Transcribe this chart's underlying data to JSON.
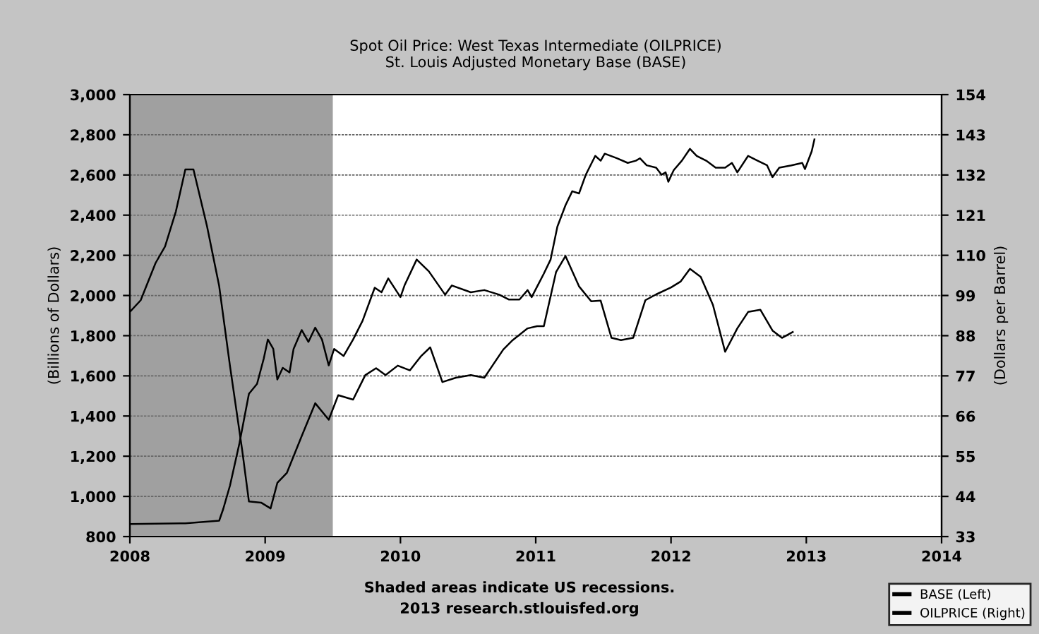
{
  "chart_data": {
    "type": "line",
    "title": "Spot Oil Price: West Texas Intermediate (OILPRICE)\nSt. Louis Adjusted Monetary Base (BASE)",
    "ylabel": "(Billions of Dollars)",
    "y2label": "(Dollars per Barrel)",
    "xlim": [
      2008,
      2014
    ],
    "xticks": [
      2008,
      2009,
      2010,
      2011,
      2012,
      2013,
      2014
    ],
    "ylim": [
      800,
      3000
    ],
    "yticks": [
      {
        "value": 800,
        "label": "800"
      },
      {
        "value": 1000,
        "label": "1,000"
      },
      {
        "value": 1200,
        "label": "1,200"
      },
      {
        "value": 1400,
        "label": "1,400"
      },
      {
        "value": 1600,
        "label": "1,600"
      },
      {
        "value": 1800,
        "label": "1,800"
      },
      {
        "value": 2000,
        "label": "2,000"
      },
      {
        "value": 2200,
        "label": "2,200"
      },
      {
        "value": 2400,
        "label": "2,400"
      },
      {
        "value": 2600,
        "label": "2,600"
      },
      {
        "value": 2800,
        "label": "2,800"
      },
      {
        "value": 3000,
        "label": "3,000"
      }
    ],
    "y2lim": [
      33,
      154
    ],
    "y2ticks": [
      33,
      44,
      55,
      66,
      77,
      88,
      99,
      110,
      121,
      132,
      143,
      154
    ],
    "grid": "y",
    "legend": "bottom right",
    "bands": [
      {
        "axis": "x",
        "from": 2008,
        "to": 2009.5,
        "color": "#a0a0a0"
      }
    ],
    "annotations": [
      "Shaded areas indicate US recessions.",
      "2013 research.stlouisfed.org"
    ],
    "series": [
      {
        "name": "BASE (Left)",
        "color": "#000000",
        "x": [
          2008.0,
          2008.41,
          2008.66,
          2008.69,
          2008.74,
          2008.81,
          2008.88,
          2008.94,
          2008.99,
          2009.02,
          2009.06,
          2009.09,
          2009.13,
          2009.18,
          2009.21,
          2009.27,
          2009.32,
          2009.37,
          2009.42,
          2009.47,
          2009.51,
          2009.58,
          2009.65,
          2009.72,
          2009.81,
          2009.86,
          2009.91,
          2010.0,
          2010.03,
          2010.12,
          2010.21,
          2010.33,
          2010.38,
          2010.52,
          2010.62,
          2010.73,
          2010.8,
          2010.88,
          2010.94,
          2010.97,
          2011.06,
          2011.11,
          2011.16,
          2011.22,
          2011.27,
          2011.32,
          2011.37,
          2011.44,
          2011.48,
          2011.51,
          2011.6,
          2011.68,
          2011.74,
          2011.77,
          2011.82,
          2011.89,
          2011.93,
          2011.96,
          2011.98,
          2012.02,
          2012.08,
          2012.14,
          2012.19,
          2012.26,
          2012.33,
          2012.4,
          2012.45,
          2012.49,
          2012.57,
          2012.64,
          2012.71,
          2012.75,
          2012.8,
          2012.89,
          2012.97,
          2012.99,
          2013.04,
          2013.06
        ],
        "values": [
          862,
          866,
          879,
          937,
          1054,
          1265,
          1511,
          1560,
          1687,
          1781,
          1734,
          1582,
          1640,
          1617,
          1734,
          1828,
          1769,
          1840,
          1781,
          1652,
          1734,
          1699,
          1781,
          1874,
          2039,
          2016,
          2085,
          1992,
          2050,
          2179,
          2120,
          2004,
          2050,
          2016,
          2027,
          2004,
          1980,
          1980,
          2027,
          1992,
          2109,
          2179,
          2343,
          2449,
          2519,
          2508,
          2601,
          2695,
          2671,
          2706,
          2683,
          2660,
          2671,
          2683,
          2648,
          2636,
          2601,
          2613,
          2566,
          2624,
          2671,
          2730,
          2695,
          2671,
          2636,
          2636,
          2660,
          2613,
          2695,
          2671,
          2648,
          2589,
          2636,
          2648,
          2660,
          2629,
          2718,
          2777
        ]
      },
      {
        "name": "OILPRICE (Right)",
        "color": "#000000",
        "axis": "y2",
        "x": [
          2008.0,
          2008.08,
          2008.19,
          2008.26,
          2008.34,
          2008.41,
          2008.47,
          2008.57,
          2008.66,
          2008.74,
          2008.83,
          2008.88,
          2008.97,
          2009.04,
          2009.09,
          2009.16,
          2009.27,
          2009.37,
          2009.47,
          2009.54,
          2009.65,
          2009.74,
          2009.82,
          2009.89,
          2009.98,
          2010.07,
          2010.15,
          2010.22,
          2010.31,
          2010.41,
          2010.52,
          2010.62,
          2010.68,
          2010.76,
          2010.83,
          2010.94,
          2011.01,
          2011.06,
          2011.15,
          2011.22,
          2011.32,
          2011.41,
          2011.48,
          2011.56,
          2011.63,
          2011.72,
          2011.81,
          2011.89,
          2012.0,
          2012.07,
          2012.14,
          2012.22,
          2012.31,
          2012.4,
          2012.49,
          2012.57,
          2012.66,
          2012.75,
          2012.82,
          2012.9
        ],
        "values": [
          94.5,
          97.7,
          107.9,
          112.4,
          122,
          133.5,
          133.5,
          118,
          101.6,
          79.7,
          56.7,
          42.6,
          42.3,
          40.7,
          47.7,
          50.4,
          60.5,
          69.5,
          65,
          71.7,
          70.5,
          77.2,
          79.1,
          77.2,
          79.8,
          78.5,
          82.3,
          84.8,
          75.3,
          76.5,
          77.2,
          76.5,
          79.8,
          84.2,
          86.8,
          90,
          90.6,
          90.6,
          105.4,
          109.8,
          101.5,
          97.4,
          97.6,
          87.4,
          86.8,
          87.4,
          97.7,
          99.3,
          101.2,
          102.8,
          106.3,
          104.1,
          96.4,
          83.6,
          90,
          94.5,
          95.1,
          89.4,
          87.4,
          89
        ]
      }
    ]
  }
}
